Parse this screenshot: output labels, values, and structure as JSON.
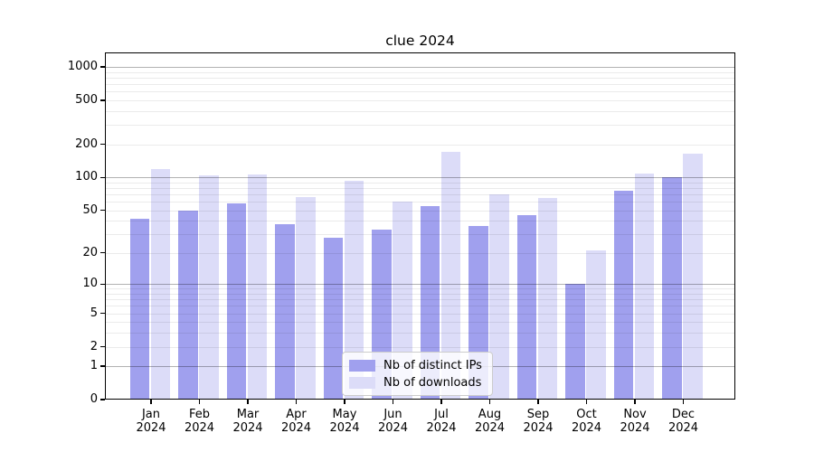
{
  "chart_data": {
    "type": "bar",
    "title": "clue 2024",
    "categories": [
      "Jan 2024",
      "Feb 2024",
      "Mar 2024",
      "Apr 2024",
      "May 2024",
      "Jun 2024",
      "Jul 2024",
      "Aug 2024",
      "Sep 2024",
      "Oct 2024",
      "Nov 2024",
      "Dec 2024"
    ],
    "series": [
      {
        "name": "Nb of distinct IPs",
        "color": "#a0a0ee",
        "values": [
          42,
          50,
          58,
          37,
          28,
          33,
          55,
          36,
          45,
          10,
          75,
          100
        ]
      },
      {
        "name": "Nb of downloads",
        "color": "#dcdcf8",
        "values": [
          120,
          104,
          106,
          66,
          93,
          60,
          171,
          70,
          65,
          21,
          108,
          165
        ]
      }
    ],
    "xlabel": "",
    "ylabel": "",
    "y_scale": "log10(1+v)",
    "y_ticks": [
      0,
      1,
      2,
      5,
      10,
      20,
      50,
      100,
      200,
      500,
      1000
    ],
    "ylim": [
      0,
      1350
    ],
    "grid": "on",
    "legend_position": "lower-center"
  },
  "colors": {
    "grid_major": "#b3b3b3",
    "grid_minor": "#ebebeb",
    "axis": "#000000",
    "background": "#ffffff"
  }
}
